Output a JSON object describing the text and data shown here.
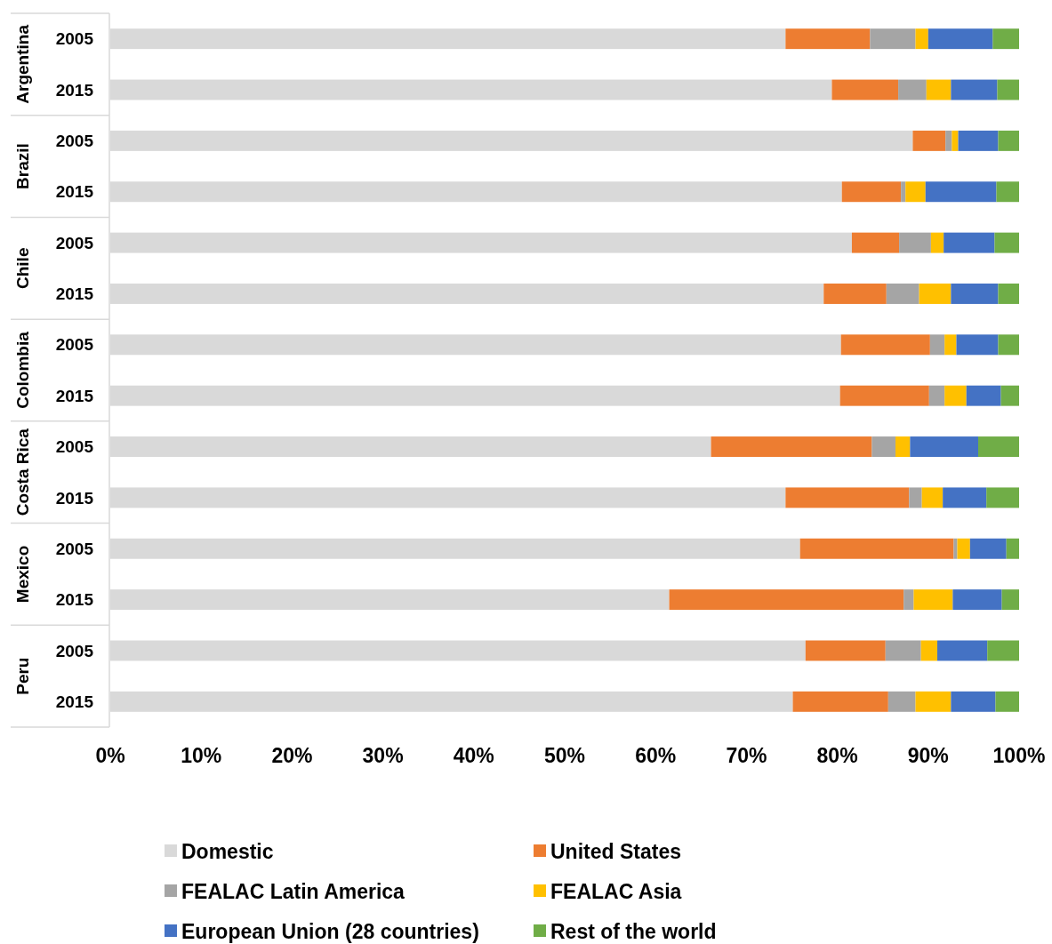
{
  "chart_data": {
    "type": "bar",
    "orientation": "horizontal",
    "stacked": true,
    "legend": "bottom",
    "grid": false,
    "categories": [
      "2005",
      "2015",
      "2005",
      "2015",
      "2005",
      "2015",
      "2005",
      "2015",
      "2005",
      "2015",
      "2005",
      "2015",
      "2005",
      "2015"
    ],
    "annotations": [
      "Argentina",
      "Brazil",
      "Chile",
      "Colombia",
      "Costa Rica",
      "Mexico",
      "Peru"
    ],
    "xlim": [
      0,
      100
    ],
    "xticks": [
      {
        "value": 0,
        "label": "0%"
      },
      {
        "value": 10,
        "label": "10%"
      },
      {
        "value": 20,
        "label": "20%"
      },
      {
        "value": 30,
        "label": "30%"
      },
      {
        "value": 40,
        "label": "40%"
      },
      {
        "value": 50,
        "label": "50%"
      },
      {
        "value": 60,
        "label": "60%"
      },
      {
        "value": 70,
        "label": "70%"
      },
      {
        "value": 80,
        "label": "80%"
      },
      {
        "value": 90,
        "label": "90%"
      },
      {
        "value": 100,
        "label": "100%"
      }
    ],
    "series": [
      {
        "name": "Domestic",
        "color": "#d9d9d9",
        "values": [
          74.3,
          79.4,
          88.3,
          80.5,
          81.6,
          78.5,
          80.4,
          80.3,
          66.1,
          74.3,
          75.9,
          61.5,
          76.5,
          75.1
        ]
      },
      {
        "name": "United States",
        "color": "#ed7d31",
        "values": [
          9.3,
          7.3,
          3.6,
          6.5,
          5.2,
          6.9,
          9.8,
          9.8,
          17.7,
          13.6,
          16.9,
          25.8,
          8.8,
          10.5
        ]
      },
      {
        "name": "FEALAC Latin America",
        "color": "#a5a5a5",
        "values": [
          5.0,
          3.1,
          0.7,
          0.5,
          3.5,
          3.6,
          1.6,
          1.7,
          2.6,
          1.4,
          0.4,
          1.1,
          3.9,
          3.0
        ]
      },
      {
        "name": "FEALAC Asia",
        "color": "#ffc000",
        "values": [
          1.4,
          2.7,
          0.7,
          2.2,
          1.4,
          3.5,
          1.3,
          2.4,
          1.6,
          2.3,
          1.4,
          4.3,
          1.8,
          3.9
        ]
      },
      {
        "name": "European Union (28 countries)",
        "color": "#4472c4",
        "values": [
          7.1,
          5.1,
          4.4,
          7.8,
          5.6,
          5.2,
          4.6,
          3.8,
          7.5,
          4.8,
          4.0,
          5.4,
          5.5,
          4.9
        ]
      },
      {
        "name": "Rest of the world",
        "color": "#70ad47",
        "values": [
          2.9,
          2.4,
          2.3,
          2.5,
          2.7,
          2.3,
          2.3,
          2.0,
          4.5,
          3.6,
          1.4,
          1.9,
          3.5,
          2.6
        ]
      }
    ]
  }
}
